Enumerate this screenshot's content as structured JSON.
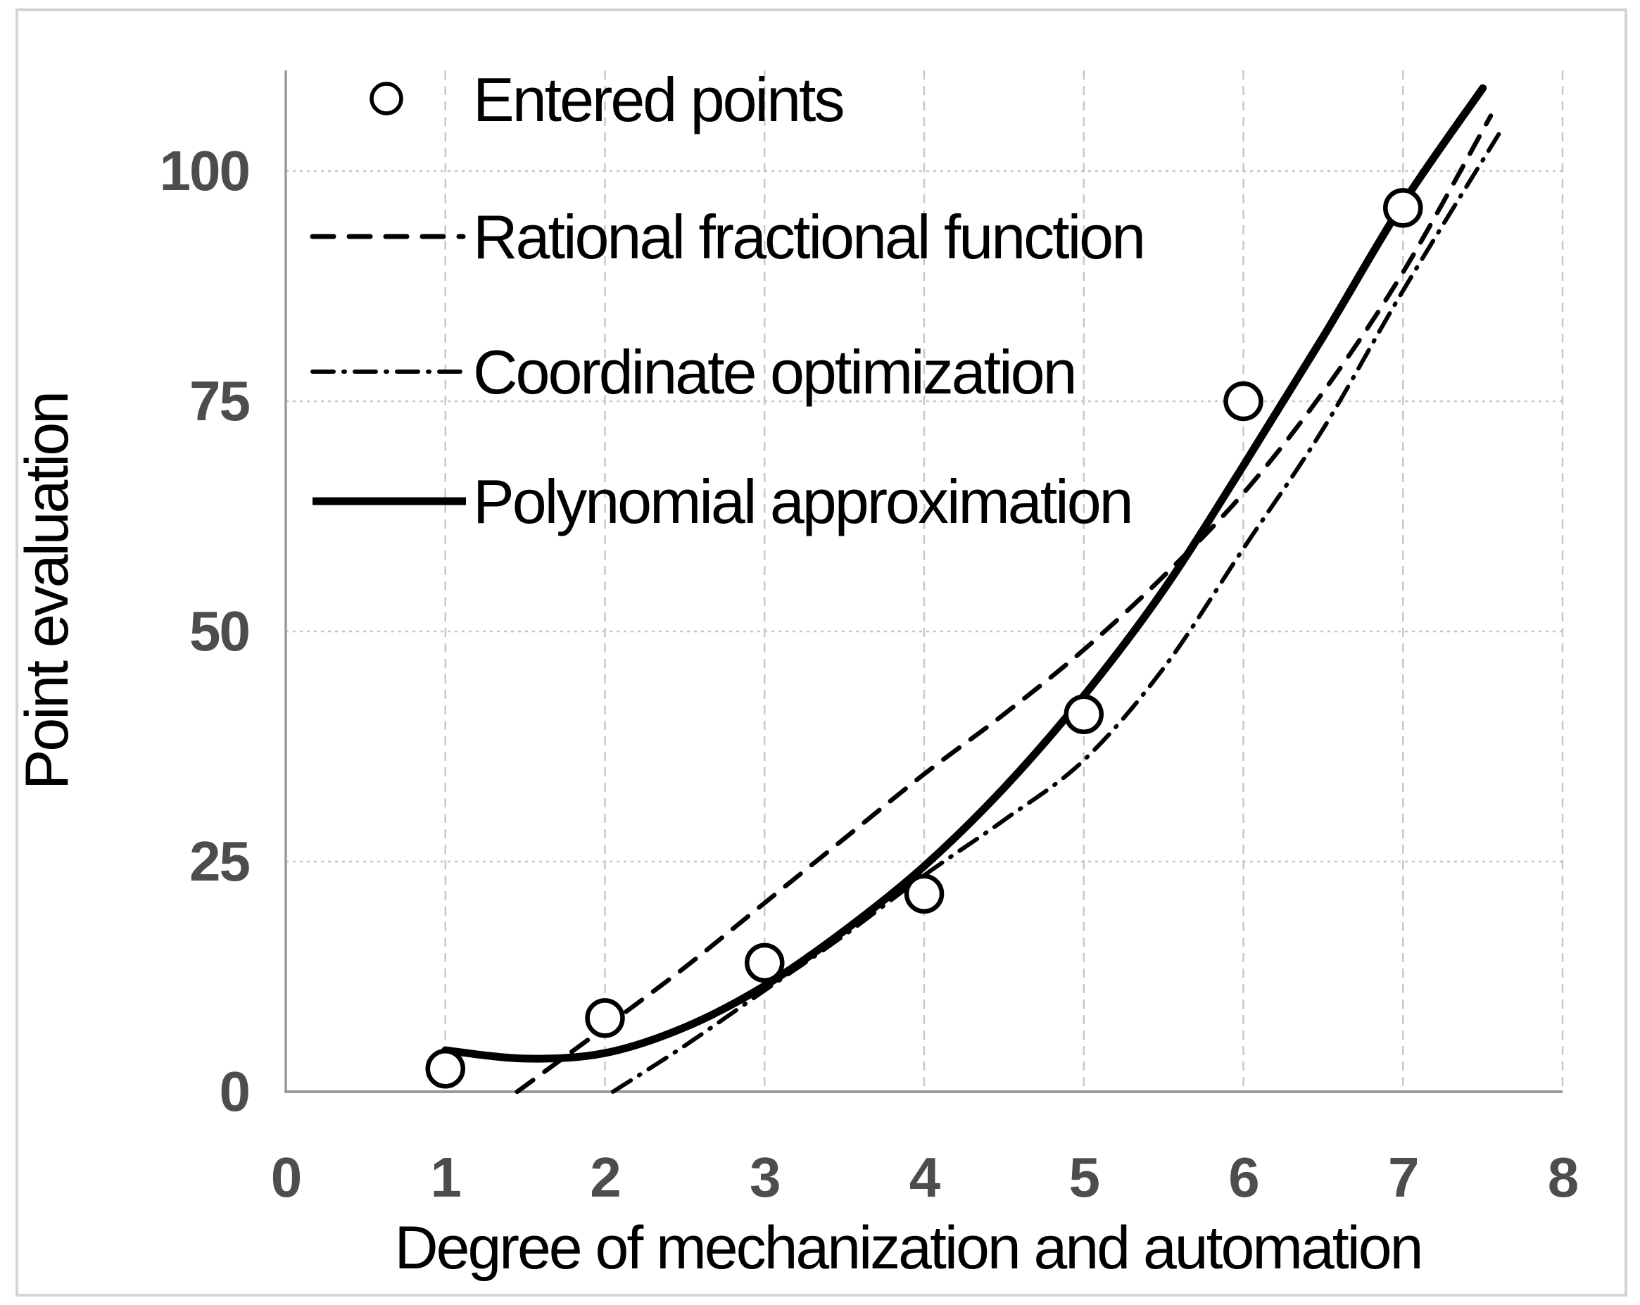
{
  "colors": {
    "curve": "#000000",
    "grid": "#c6c6c6",
    "axis": "#9a9a9a",
    "frame": "#d4d4d4",
    "tick_label": "#4d4d4d",
    "text": "#000000",
    "marker_fill": "#ffffff"
  },
  "legend": {
    "items": [
      {
        "label": "Entered points",
        "marker": "circle-open"
      },
      {
        "label": "Rational fractional function",
        "marker": "dashed-line"
      },
      {
        "label": "Coordinate optimization",
        "marker": "dashdot-line"
      },
      {
        "label": "Polynomial approximation",
        "marker": "solid-line"
      }
    ]
  },
  "chart_data": {
    "type": "line",
    "title": "",
    "xlabel": "Degree of mechanization and automation",
    "ylabel": "Point evaluation",
    "xlim": [
      0,
      8
    ],
    "ylim": [
      0,
      112
    ],
    "x_ticks": [
      0,
      1,
      2,
      3,
      4,
      5,
      6,
      7,
      8
    ],
    "y_ticks": [
      0,
      25,
      50,
      75,
      100
    ],
    "grid": true,
    "legend_position": "top-left",
    "series": [
      {
        "name": "Entered points",
        "type": "scatter",
        "style": "circle-open",
        "points": [
          [
            1,
            2.5
          ],
          [
            2,
            8
          ],
          [
            3,
            14
          ],
          [
            4,
            21.5
          ],
          [
            5,
            41
          ],
          [
            6,
            75
          ],
          [
            7,
            96
          ]
        ]
      },
      {
        "name": "Rational fractional function",
        "type": "line",
        "style": "dashed",
        "points": [
          [
            1.45,
            0
          ],
          [
            2,
            7
          ],
          [
            2.5,
            13.5
          ],
          [
            3,
            20.5
          ],
          [
            3.5,
            27.5
          ],
          [
            4,
            34.5
          ],
          [
            4.5,
            41
          ],
          [
            5,
            48
          ],
          [
            5.5,
            56
          ],
          [
            6,
            65
          ],
          [
            6.5,
            76
          ],
          [
            7,
            89
          ],
          [
            7.55,
            106
          ]
        ]
      },
      {
        "name": "Coordinate optimization",
        "type": "line",
        "style": "dashdot",
        "points": [
          [
            2.05,
            0
          ],
          [
            2.5,
            5
          ],
          [
            3,
            11
          ],
          [
            3.5,
            17
          ],
          [
            4,
            23.5
          ],
          [
            4.5,
            29.5
          ],
          [
            5,
            36
          ],
          [
            5.5,
            46
          ],
          [
            6,
            59
          ],
          [
            6.5,
            72
          ],
          [
            7,
            87
          ],
          [
            7.6,
            104
          ]
        ]
      },
      {
        "name": "Polynomial approximation",
        "type": "line",
        "style": "solid",
        "points": [
          [
            1,
            4.5
          ],
          [
            1.5,
            3.6
          ],
          [
            2,
            4.2
          ],
          [
            2.5,
            7
          ],
          [
            3,
            11.5
          ],
          [
            3.5,
            17.5
          ],
          [
            4,
            24.5
          ],
          [
            4.5,
            33
          ],
          [
            5,
            43
          ],
          [
            5.5,
            54.5
          ],
          [
            6,
            68
          ],
          [
            6.5,
            82
          ],
          [
            7,
            96.5
          ],
          [
            7.5,
            109
          ]
        ]
      }
    ]
  }
}
